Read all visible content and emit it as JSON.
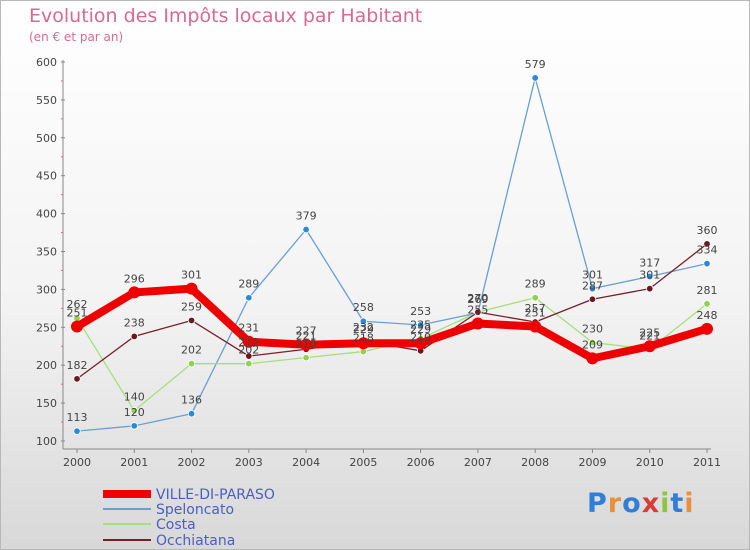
{
  "header": {
    "title": "Evolution des Impôts locaux par Habitant",
    "subtitle": "(en € et par an)"
  },
  "logo": {
    "text": "Proxiti"
  },
  "colors": {
    "accent_title": "#d86a8e",
    "ville": "#ee0000",
    "speloncato": "#6a9fd3",
    "costa": "#a3e07a",
    "occhiatana": "#7a1f2a",
    "speloncato_marker": "#2b8ad8",
    "costa_marker": "#8fd24c",
    "occhiatana_marker": "#6b1620"
  },
  "chart_data": {
    "type": "line",
    "title": "Evolution des Impôts locaux par Habitant",
    "subtitle": "(en € et par an)",
    "xlabel": "",
    "ylabel": "",
    "categories": [
      "2000",
      "2001",
      "2002",
      "2003",
      "2004",
      "2005",
      "2006",
      "2007",
      "2008",
      "2009",
      "2010",
      "2011"
    ],
    "ylim": [
      100,
      600
    ],
    "yticks": [
      "100",
      "150",
      "200",
      "250",
      "300",
      "350",
      "400",
      "450",
      "500",
      "550",
      "600"
    ],
    "grid": false,
    "legend_position": "bottom-left",
    "series": [
      {
        "name": "VILLE-DI-PARASO",
        "values": [
          251,
          296,
          301,
          231,
          227,
          229,
          229,
          255,
          251,
          209,
          225,
          248
        ]
      },
      {
        "name": "Speloncato",
        "values": [
          113,
          120,
          136,
          289,
          379,
          258,
          253,
          269,
          579,
          301,
          317,
          334
        ]
      },
      {
        "name": "Costa",
        "values": [
          262,
          140,
          202,
          202,
          210,
          218,
          235,
          270,
          289,
          230,
          221,
          281
        ]
      },
      {
        "name": "Occhiatana",
        "values": [
          182,
          238,
          259,
          212,
          221,
          232,
          219,
          270,
          257,
          287,
          301,
          360
        ]
      }
    ]
  }
}
